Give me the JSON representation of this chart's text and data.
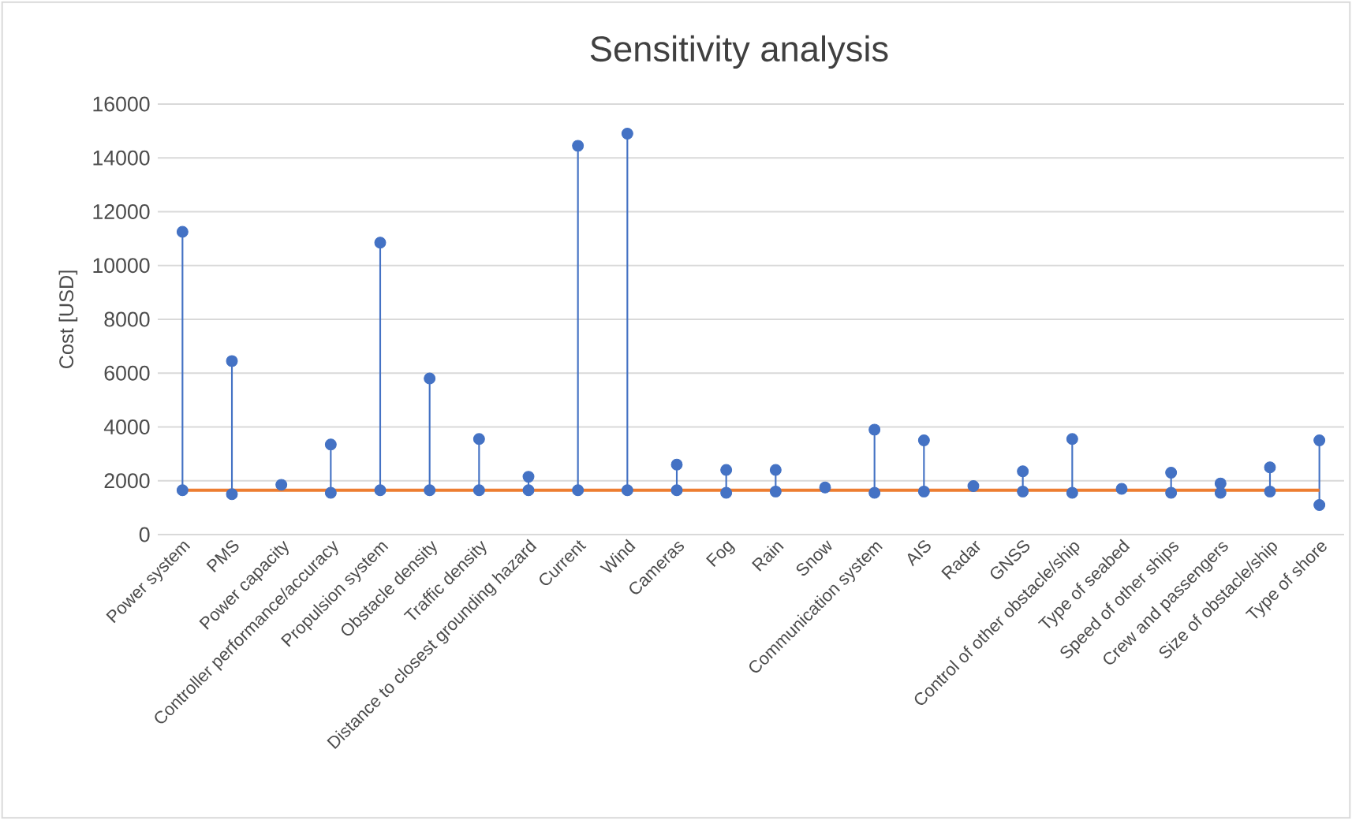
{
  "chart_data": {
    "type": "scatter",
    "title": "Sensitivity analysis",
    "ylabel": "Cost [USD]",
    "categories": [
      "Power system",
      "PMS",
      "Power capacity",
      "Controller performance/accuracy",
      "Propulsion system",
      "Obstacle density",
      "Traffic density",
      "Distance to closest grounding hazard",
      "Current",
      "Wind",
      "Cameras",
      "Fog",
      "Rain",
      "Snow",
      "Communication system",
      "AIS",
      "Radar",
      "GNSS",
      "Control of other obstacle/ship",
      "Type of seabed",
      "Speed of other ships",
      "Crew and passengers",
      "Size of obstacle/ship",
      "Type of shore"
    ],
    "series": [
      {
        "type": "line",
        "color": "#ed7d31",
        "marker": "none",
        "values": [
          1650,
          1650,
          1650,
          1650,
          1650,
          1650,
          1650,
          1650,
          1650,
          1650,
          1650,
          1650,
          1650,
          1650,
          1650,
          1650,
          1650,
          1650,
          1650,
          1650,
          1650,
          1650,
          1650,
          1650
        ]
      },
      {
        "color": "#4472c4",
        "values": [
          1650,
          1500,
          null,
          1550,
          1650,
          1650,
          1650,
          1650,
          1650,
          1650,
          1650,
          1550,
          1600,
          null,
          1550,
          1600,
          null,
          1600,
          1550,
          null,
          1550,
          1550,
          1600,
          1100
        ]
      },
      {
        "color": "#4472c4",
        "values": [
          11250,
          6450,
          1850,
          3350,
          10850,
          5800,
          3550,
          2150,
          14450,
          14900,
          2600,
          2400,
          2400,
          1750,
          3900,
          3500,
          1800,
          2350,
          3550,
          1700,
          2300,
          1900,
          2500,
          3500
        ]
      }
    ],
    "marker": "circle",
    "ylim": [
      0,
      16000
    ],
    "yticks": [
      0,
      2000,
      4000,
      6000,
      8000,
      10000,
      12000,
      14000,
      16000
    ],
    "grid": "y"
  }
}
